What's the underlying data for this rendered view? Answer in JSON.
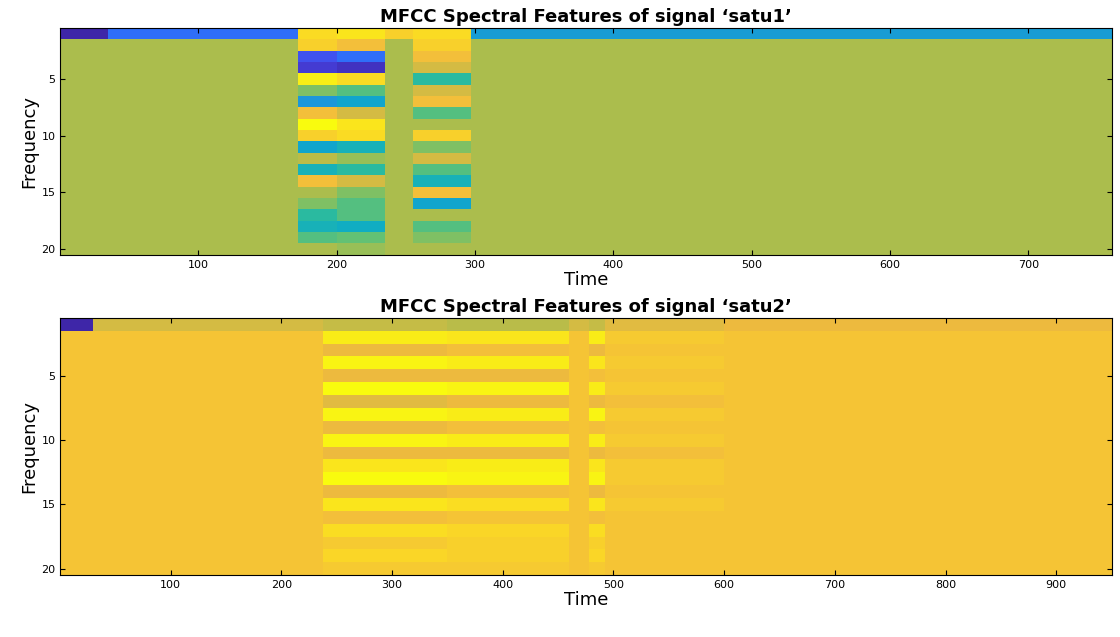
{
  "chart_data": [
    {
      "type": "heatmap",
      "title": "MFCC Spectral Features of signal ‘satu1’",
      "x_label": "Time",
      "y_label": "Frequency",
      "x_edges": [
        0.5,
        35,
        172,
        200,
        235,
        255,
        297,
        760.5
      ],
      "y_edges": [
        0.5,
        1.5,
        2.5,
        3.5,
        4.5,
        5.5,
        6.5,
        7.5,
        8.5,
        9.5,
        10.5,
        11.5,
        12.5,
        13.5,
        14.5,
        15.5,
        16.5,
        17.5,
        18.5,
        19.5,
        20.5
      ],
      "cells": [
        [
          15,
          30,
          88,
          90,
          85,
          88,
          42
        ],
        [
          70,
          70,
          85,
          80,
          70,
          85,
          70
        ],
        [
          70,
          70,
          25,
          30,
          70,
          80,
          70
        ],
        [
          70,
          70,
          20,
          18,
          70,
          75,
          70
        ],
        [
          70,
          70,
          92,
          88,
          70,
          55,
          70
        ],
        [
          70,
          70,
          65,
          60,
          70,
          75,
          70
        ],
        [
          70,
          70,
          40,
          45,
          70,
          80,
          70
        ],
        [
          70,
          70,
          80,
          75,
          70,
          60,
          70
        ],
        [
          70,
          70,
          95,
          90,
          70,
          70,
          70
        ],
        [
          70,
          70,
          85,
          88,
          70,
          85,
          70
        ],
        [
          70,
          70,
          45,
          50,
          70,
          65,
          70
        ],
        [
          70,
          70,
          72,
          68,
          70,
          75,
          70
        ],
        [
          70,
          70,
          50,
          55,
          70,
          60,
          70
        ],
        [
          70,
          70,
          80,
          75,
          70,
          50,
          70
        ],
        [
          70,
          70,
          70,
          65,
          70,
          80,
          70
        ],
        [
          70,
          70,
          65,
          60,
          70,
          45,
          70
        ],
        [
          70,
          70,
          55,
          60,
          70,
          70,
          70
        ],
        [
          70,
          70,
          50,
          48,
          70,
          60,
          70
        ],
        [
          70,
          70,
          60,
          62,
          70,
          65,
          70
        ],
        [
          70,
          70,
          70,
          68,
          70,
          70,
          70
        ]
      ],
      "xlim": [
        0.5,
        760.5
      ],
      "ylim": [
        20.5,
        0.5
      ],
      "xticks": [
        100,
        200,
        300,
        400,
        500,
        600,
        700
      ],
      "yticks": [
        5,
        10,
        15,
        20
      ]
    },
    {
      "type": "heatmap",
      "title": "MFCC Spectral Features of signal ‘satu2’",
      "x_label": "Time",
      "y_label": "Frequency",
      "x_edges": [
        0.5,
        30,
        238,
        350,
        460,
        478,
        492,
        600,
        950.5
      ],
      "y_edges": [
        0.5,
        1.5,
        2.5,
        3.5,
        4.5,
        5.5,
        6.5,
        7.5,
        8.5,
        9.5,
        10.5,
        11.5,
        12.5,
        13.5,
        14.5,
        15.5,
        16.5,
        17.5,
        18.5,
        19.5,
        20.5
      ],
      "cells": [
        [
          50,
          86,
          85,
          84,
          86,
          85,
          87,
          88
        ],
        [
          90,
          90,
          96,
          95,
          90,
          96,
          91,
          90
        ],
        [
          90,
          90,
          88,
          89,
          90,
          88,
          90,
          90
        ],
        [
          90,
          90,
          97,
          96,
          90,
          95,
          91,
          90
        ],
        [
          90,
          90,
          88,
          88,
          90,
          89,
          90,
          90
        ],
        [
          90,
          90,
          98,
          97,
          90,
          96,
          91,
          90
        ],
        [
          90,
          90,
          87,
          88,
          90,
          88,
          89,
          90
        ],
        [
          90,
          90,
          97,
          96,
          90,
          97,
          91,
          90
        ],
        [
          90,
          90,
          88,
          89,
          90,
          89,
          90,
          90
        ],
        [
          90,
          90,
          97,
          96,
          90,
          96,
          91,
          90
        ],
        [
          90,
          90,
          88,
          88,
          90,
          88,
          89,
          90
        ],
        [
          90,
          90,
          95,
          96,
          90,
          95,
          91,
          90
        ],
        [
          90,
          90,
          98,
          97,
          90,
          97,
          91,
          90
        ],
        [
          90,
          90,
          88,
          89,
          90,
          88,
          90,
          90
        ],
        [
          90,
          90,
          95,
          94,
          90,
          95,
          91,
          90
        ],
        [
          90,
          90,
          89,
          90,
          90,
          89,
          90,
          90
        ],
        [
          90,
          90,
          94,
          93,
          90,
          94,
          90,
          90
        ],
        [
          90,
          90,
          91,
          92,
          90,
          92,
          90,
          90
        ],
        [
          90,
          90,
          93,
          92,
          90,
          93,
          90,
          90
        ],
        [
          90,
          90,
          91,
          91,
          90,
          91,
          90,
          90
        ]
      ],
      "xlim": [
        0.5,
        950.5
      ],
      "ylim": [
        20.5,
        0.5
      ],
      "xticks": [
        100,
        200,
        300,
        400,
        500,
        600,
        700,
        800,
        900
      ],
      "yticks": [
        5,
        10,
        15,
        20
      ]
    }
  ]
}
